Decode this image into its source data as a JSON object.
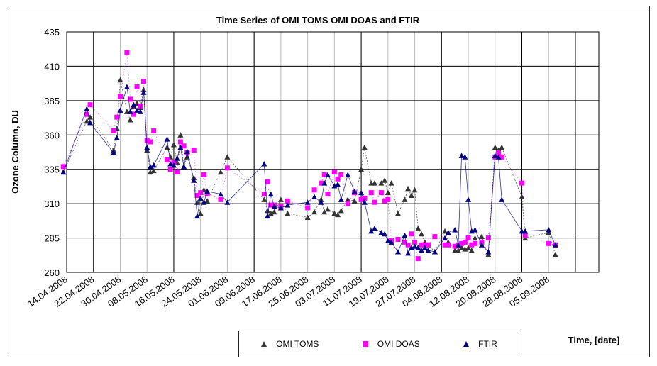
{
  "chart_data": {
    "type": "scatter",
    "title": "Time Series of OMI TOMS OMI DOAS and FTIR",
    "ylabel": "Ozone Column, DU",
    "xlabel": "Time, [date]",
    "ylim": [
      260,
      435
    ],
    "yticks": [
      260,
      285,
      310,
      335,
      360,
      385,
      410,
      435
    ],
    "xlim_days": [
      0,
      159
    ],
    "xticks": [
      {
        "label": "14.04.2008",
        "day": 0
      },
      {
        "label": "22.04.2008",
        "day": 8
      },
      {
        "label": "30.04.2008",
        "day": 16
      },
      {
        "label": "08.05.2008",
        "day": 24
      },
      {
        "label": "16.05.2008",
        "day": 32
      },
      {
        "label": "24.05.2008",
        "day": 40
      },
      {
        "label": "01.06.2008",
        "day": 48
      },
      {
        "label": "09.06.2008",
        "day": 56
      },
      {
        "label": "17.06.2008",
        "day": 64
      },
      {
        "label": "25.06.2008",
        "day": 72
      },
      {
        "label": "03.07.2008",
        "day": 80
      },
      {
        "label": "11.07.2008",
        "day": 88
      },
      {
        "label": "19.07.2008",
        "day": 96
      },
      {
        "label": "27.07.2008",
        "day": 104
      },
      {
        "label": "04.08.2008",
        "day": 112
      },
      {
        "label": "12.08.2008",
        "day": 120
      },
      {
        "label": "20.08.2008",
        "day": 128
      },
      {
        "label": "28.08.2008",
        "day": 136
      },
      {
        "label": "05.09.2008",
        "day": 144
      }
    ],
    "major_grid_days": [
      8,
      32,
      56,
      88,
      112,
      136,
      152
    ],
    "series": [
      {
        "name": "OMI TOMS",
        "color": "#333333",
        "marker": "triangle",
        "dash": "2,2",
        "x": [
          -1,
          6,
          7,
          14,
          15,
          16,
          18,
          19,
          20,
          21,
          22,
          23,
          24,
          25,
          26,
          30,
          31,
          32,
          33,
          34,
          35,
          36,
          38,
          39,
          40,
          41,
          42,
          46,
          48,
          59,
          60,
          61,
          62,
          64,
          66,
          72,
          74,
          76,
          77,
          78,
          80,
          81,
          82,
          84,
          86,
          88,
          89,
          91,
          92,
          94,
          95,
          96,
          97,
          99,
          101,
          102,
          103,
          104,
          105,
          106,
          107,
          108,
          110,
          113,
          114,
          116,
          117,
          118,
          119,
          120,
          121,
          122,
          124,
          126,
          128,
          129,
          130,
          136,
          137,
          144,
          146
        ],
        "y": [
          333,
          370,
          373,
          349,
          365,
          400,
          377,
          371,
          381,
          383,
          380,
          393,
          349,
          333,
          334,
          351,
          344,
          353,
          340,
          360,
          337,
          344,
          329,
          311,
          303,
          320,
          312,
          333,
          344,
          313,
          305,
          303,
          304,
          313,
          303,
          300,
          304,
          313,
          304,
          306,
          303,
          302,
          305,
          313,
          312,
          335,
          351,
          325,
          325,
          325,
          327,
          318,
          325,
          303,
          313,
          321,
          316,
          320,
          292,
          288,
          282,
          280,
          275,
          290,
          282,
          276,
          276,
          278,
          277,
          278,
          276,
          285,
          286,
          273,
          351,
          349,
          351,
          315,
          285,
          289,
          273
        ]
      },
      {
        "name": "OMI DOAS",
        "color": "#ff00ff",
        "marker": "square",
        "dash": "1,3",
        "x": [
          -1,
          6,
          7,
          14,
          15,
          16,
          18,
          19,
          20,
          21,
          22,
          23,
          24,
          25,
          26,
          30,
          31,
          32,
          33,
          34,
          35,
          36,
          38,
          39,
          40,
          41,
          42,
          46,
          48,
          59,
          60,
          61,
          62,
          64,
          66,
          72,
          74,
          76,
          77,
          78,
          80,
          81,
          82,
          84,
          86,
          88,
          89,
          91,
          92,
          94,
          95,
          96,
          97,
          99,
          101,
          102,
          103,
          104,
          105,
          106,
          107,
          108,
          110,
          113,
          114,
          116,
          117,
          118,
          119,
          120,
          121,
          122,
          124,
          126,
          128,
          129,
          130,
          136,
          137,
          144,
          146
        ],
        "y": [
          337,
          375,
          382,
          363,
          373,
          388,
          420,
          386,
          375,
          395,
          381,
          399,
          356,
          355,
          363,
          342,
          335,
          340,
          333,
          355,
          352,
          347,
          349,
          316,
          318,
          331,
          317,
          313,
          336,
          317,
          326,
          309,
          309,
          308,
          312,
          307,
          320,
          325,
          331,
          317,
          333,
          328,
          331,
          310,
          318,
          313,
          314,
          318,
          311,
          318,
          312,
          313,
          283,
          284,
          282,
          280,
          288,
          282,
          270,
          280,
          280,
          280,
          286,
          280,
          280,
          279,
          280,
          281,
          282,
          285,
          280,
          281,
          282,
          285,
          344,
          347,
          344,
          325,
          287,
          281,
          280
        ]
      },
      {
        "name": "FTIR",
        "color": "#000080",
        "marker": "triangle",
        "dash": "",
        "x": [
          -1,
          6,
          7,
          14,
          15,
          16,
          18,
          19,
          20,
          21,
          22,
          23,
          24,
          25,
          26,
          30,
          31,
          32,
          33,
          34,
          35,
          36,
          38,
          39,
          40,
          41,
          42,
          46,
          48,
          59,
          60,
          61,
          62,
          64,
          66,
          72,
          74,
          76,
          77,
          78,
          80,
          81,
          82,
          84,
          86,
          88,
          89,
          91,
          92,
          94,
          95,
          96,
          97,
          99,
          101,
          102,
          103,
          104,
          105,
          106,
          107,
          108,
          110,
          113,
          114,
          116,
          117,
          118,
          119,
          120,
          121,
          122,
          124,
          126,
          128,
          129,
          130,
          136,
          137,
          144,
          146
        ],
        "y": [
          333,
          379,
          369,
          347,
          358,
          378,
          395,
          377,
          382,
          378,
          377,
          391,
          351,
          337,
          338,
          357,
          339,
          338,
          343,
          351,
          337,
          348,
          327,
          301,
          314,
          311,
          319,
          317,
          311,
          339,
          301,
          317,
          308,
          307,
          309,
          311,
          315,
          311,
          325,
          331,
          323,
          324,
          313,
          331,
          319,
          318,
          311,
          290,
          292,
          289,
          288,
          283,
          282,
          275,
          287,
          274,
          278,
          279,
          278,
          276,
          278,
          276,
          275,
          285,
          289,
          291,
          280,
          345,
          344,
          313,
          290,
          291,
          280,
          275,
          345,
          344,
          313,
          290,
          290,
          291,
          280
        ]
      }
    ]
  }
}
